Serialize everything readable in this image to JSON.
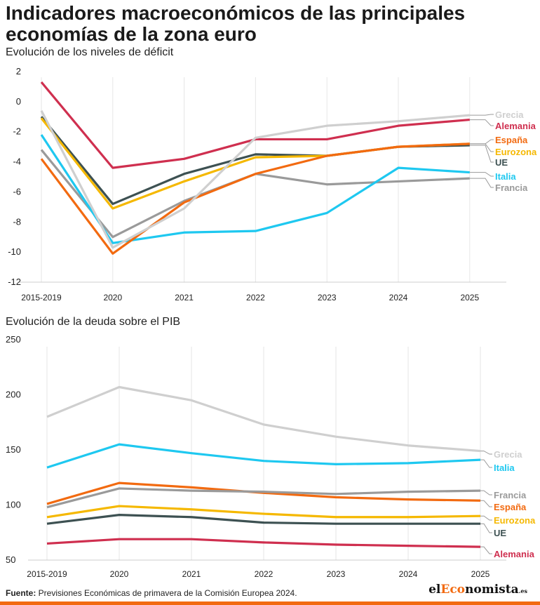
{
  "title": "Indicadores macroeconómicos de las principales economías de la zona euro",
  "footer": {
    "label": "Fuente:",
    "text": " Previsiones Económicas de primavera de la Comisión Europea 2024."
  },
  "logo": {
    "part1": "el",
    "part2": "Eco",
    "part3": "nomista",
    "part4": ".es"
  },
  "colors": {
    "Grecia": "#cfcfcf",
    "Alemania": "#cf2f4f",
    "España": "#f26a10",
    "Eurozona": "#f5b800",
    "UE": "#3d5152",
    "Italia": "#1ec8f0",
    "Francia": "#9a9a9a"
  },
  "chart_data": [
    {
      "type": "line",
      "title": "Evolución de los niveles de déficit",
      "categories": [
        "2015-2019",
        "2020",
        "2021",
        "2022",
        "2023",
        "2024",
        "2025"
      ],
      "ylim": [
        -12,
        2
      ],
      "yticks": [
        2,
        0,
        -2,
        -4,
        -6,
        -8,
        -10,
        -12
      ],
      "grid": "vertical",
      "legend": "right-end labels",
      "series": [
        {
          "name": "Grecia",
          "values": [
            -0.6,
            -9.7,
            -7.1,
            -2.4,
            -1.6,
            -1.3,
            -0.9
          ]
        },
        {
          "name": "Alemania",
          "values": [
            1.3,
            -4.4,
            -3.8,
            -2.5,
            -2.5,
            -1.6,
            -1.2
          ]
        },
        {
          "name": "España",
          "values": [
            -3.8,
            -10.1,
            -6.7,
            -4.8,
            -3.6,
            -3.0,
            -2.8
          ]
        },
        {
          "name": "Eurozona",
          "values": [
            -1.1,
            -7.1,
            -5.3,
            -3.7,
            -3.6,
            -3.0,
            -2.8
          ]
        },
        {
          "name": "UE",
          "values": [
            -1.0,
            -6.8,
            -4.8,
            -3.5,
            -3.6,
            -3.0,
            -2.9
          ]
        },
        {
          "name": "Italia",
          "values": [
            -2.2,
            -9.4,
            -8.7,
            -8.6,
            -7.4,
            -4.4,
            -4.7
          ]
        },
        {
          "name": "Francia",
          "values": [
            -3.2,
            -9.0,
            -6.6,
            -4.8,
            -5.5,
            -5.3,
            -5.1
          ]
        }
      ]
    },
    {
      "type": "line",
      "title": "Evolución de la deuda sobre el PIB",
      "categories": [
        "2015-2019",
        "2020",
        "2021",
        "2022",
        "2023",
        "2024",
        "2025"
      ],
      "ylim": [
        50,
        250
      ],
      "yticks": [
        250,
        200,
        150,
        100,
        50
      ],
      "grid": "vertical",
      "legend": "right-end labels",
      "series": [
        {
          "name": "Grecia",
          "values": [
            180,
            207,
            195,
            173,
            162,
            154,
            149
          ]
        },
        {
          "name": "Italia",
          "values": [
            134,
            155,
            147,
            140,
            137,
            138,
            141
          ]
        },
        {
          "name": "Francia",
          "values": [
            98,
            115,
            113,
            112,
            110,
            112,
            113
          ]
        },
        {
          "name": "España",
          "values": [
            101,
            120,
            116,
            111,
            107,
            105,
            104
          ]
        },
        {
          "name": "Eurozona",
          "values": [
            89,
            99,
            96,
            92,
            89,
            89,
            90
          ]
        },
        {
          "name": "UE",
          "values": [
            83,
            91,
            89,
            84,
            83,
            83,
            83
          ]
        },
        {
          "name": "Alemania",
          "values": [
            65,
            69,
            69,
            66,
            64,
            63,
            62
          ]
        }
      ]
    }
  ]
}
